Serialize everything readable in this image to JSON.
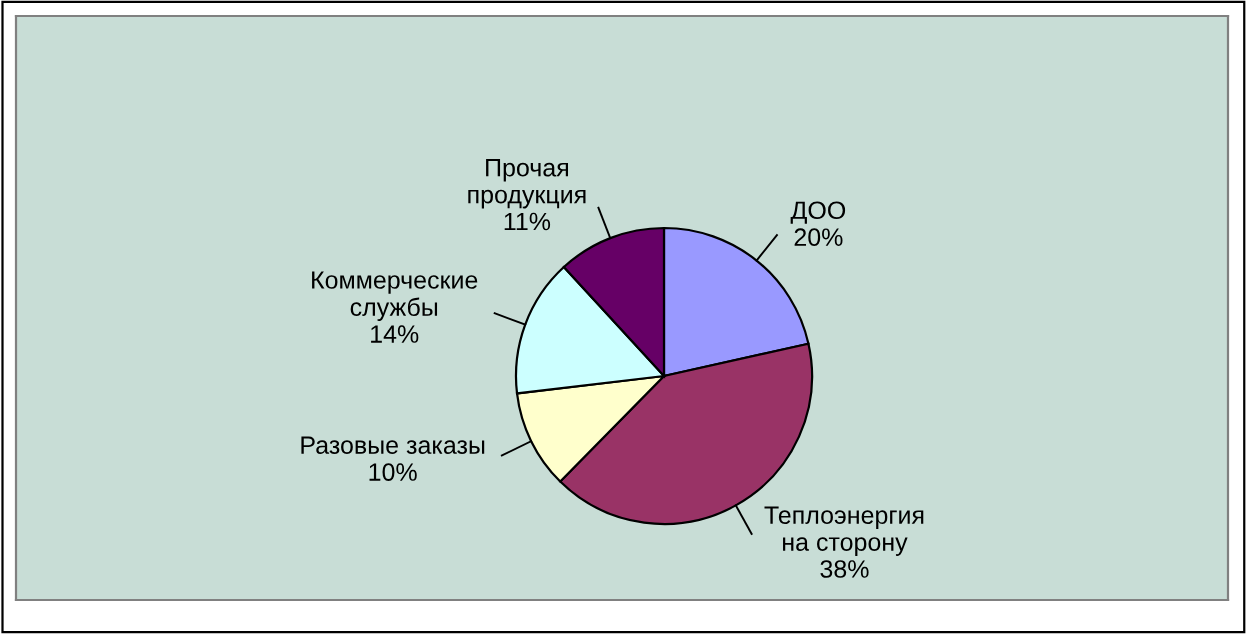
{
  "chart_data": {
    "type": "pie",
    "categories": [
      "ДОО",
      "Теплоэнергия\nна сторону",
      "Разовые заказы",
      "Коммерческие\nслужбы",
      "Прочая\nпродукция"
    ],
    "values": [
      20,
      38,
      10,
      14,
      11
    ],
    "value_labels": [
      "20%",
      "38%",
      "10%",
      "14%",
      "11%"
    ],
    "colors": [
      "#9999ff",
      "#993366",
      "#ffffcc",
      "#ccffff",
      "#660066"
    ],
    "legend": false
  }
}
